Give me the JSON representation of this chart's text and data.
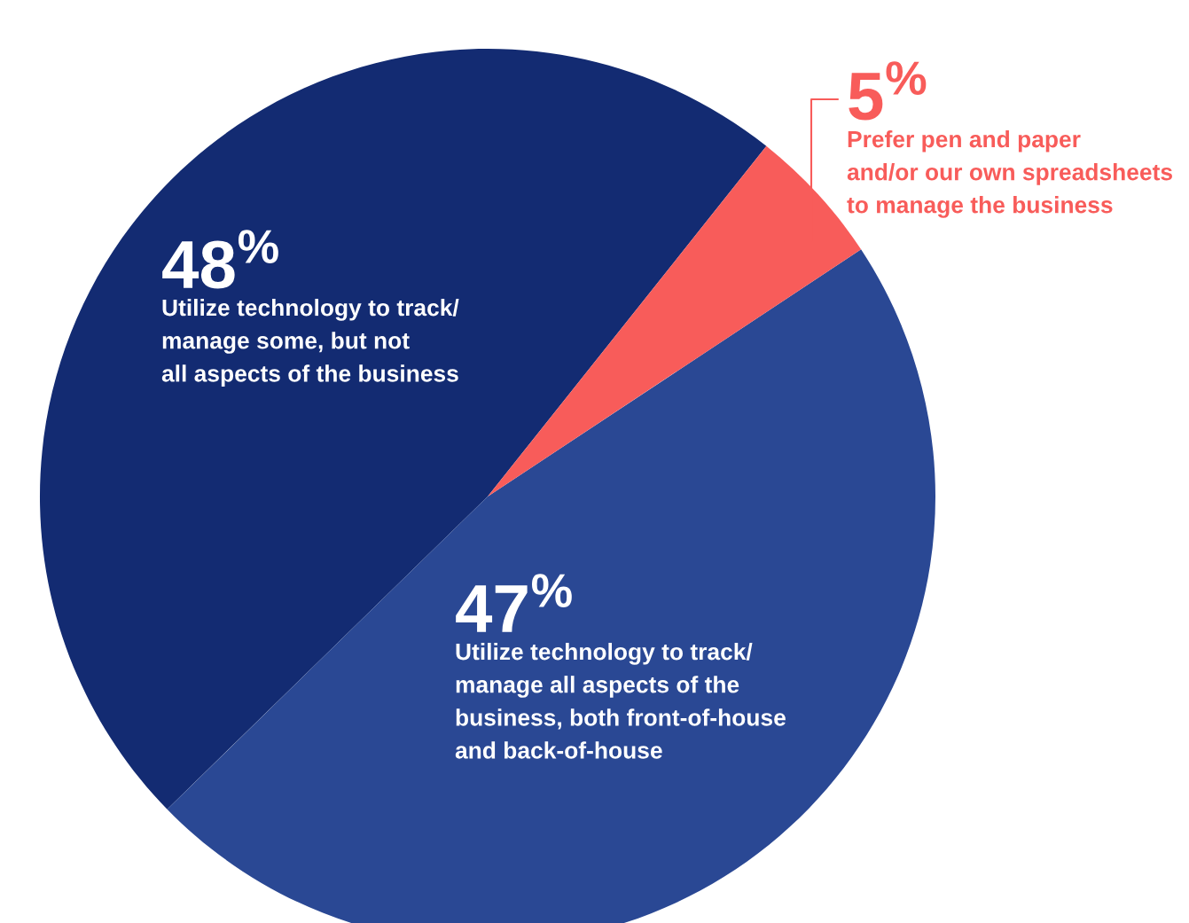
{
  "chart_data": {
    "type": "pie",
    "categories": [
      "Utilize technology to track/\nmanage some, but not\nall aspects of the business",
      "Utilize technology to track/\nmanage all aspects of the\nbusiness, both front-of-house\nand back-of-house",
      "Prefer pen and paper\nand/or our own spreadsheets\nto manage the business"
    ],
    "values": [
      48,
      47,
      5
    ],
    "colors": [
      "#132b72",
      "#2a4894",
      "#f85c5a"
    ],
    "value_labels": [
      "48$^{%}$",
      "47$^{%}$",
      "5$^{%}$"
    ]
  }
}
